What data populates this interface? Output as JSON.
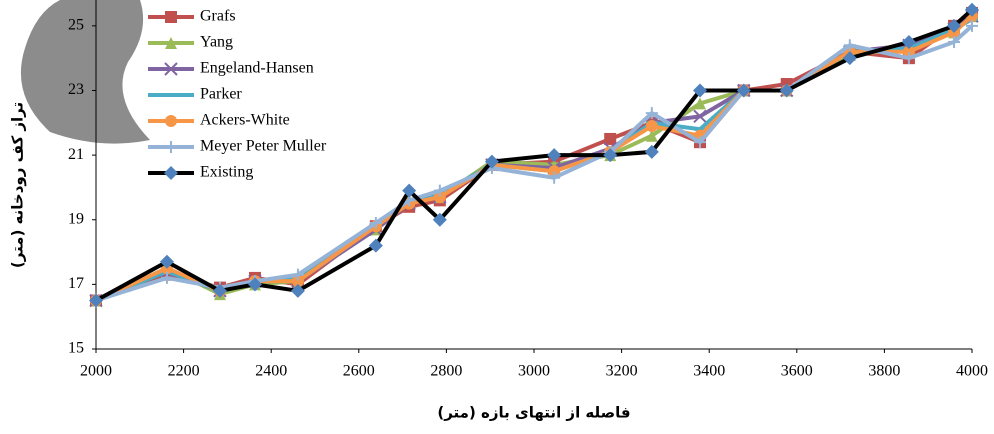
{
  "chart_data": {
    "type": "line",
    "x_label": "فاصله از انتهای بازه (متر)",
    "y_label": "تراز کف رودخانه (متر)",
    "x": [
      2000,
      2162,
      2283,
      2363,
      2461,
      2639,
      2715,
      2785,
      2904,
      3046,
      3174,
      3269,
      3379,
      3479,
      3577,
      3721,
      3856,
      3959,
      4000
    ],
    "xlim": [
      2000,
      4000
    ],
    "xticks": [
      2000,
      2200,
      2400,
      2600,
      2800,
      3000,
      3200,
      3400,
      3600,
      3800,
      4000
    ],
    "ylim": [
      15,
      25.8
    ],
    "yticks": [
      15,
      17,
      19,
      21,
      23,
      25
    ],
    "legend": "top-left",
    "series": [
      {
        "name": "Grafs",
        "color": "#c0504d",
        "marker": "square",
        "values": [
          16.5,
          17.3,
          16.9,
          17.2,
          17.0,
          18.8,
          19.4,
          19.6,
          20.7,
          20.8,
          21.5,
          22.0,
          21.4,
          23.0,
          23.2,
          24.2,
          24.0,
          25.0,
          25.4
        ]
      },
      {
        "name": "Yang",
        "color": "#9bbb59",
        "marker": "triangle",
        "values": [
          16.5,
          17.5,
          16.7,
          17.0,
          17.1,
          18.7,
          19.6,
          19.7,
          20.8,
          20.7,
          21.0,
          21.6,
          22.6,
          23.0,
          23.0,
          24.1,
          24.3,
          24.8,
          25.3
        ]
      },
      {
        "name": "Engeland-Hansen",
        "color": "#8064a2",
        "marker": "x",
        "values": [
          16.5,
          17.4,
          16.8,
          17.1,
          17.1,
          18.7,
          19.5,
          19.7,
          20.7,
          20.6,
          21.2,
          22.0,
          22.2,
          23.0,
          23.0,
          24.2,
          24.4,
          24.9,
          25.3
        ]
      },
      {
        "name": "Parker",
        "color": "#4bacc6",
        "marker": "dash",
        "values": [
          16.5,
          17.4,
          16.8,
          17.1,
          17.2,
          18.8,
          19.6,
          19.8,
          20.7,
          20.5,
          21.1,
          22.0,
          21.8,
          23.0,
          23.0,
          24.2,
          24.3,
          24.9,
          25.2
        ]
      },
      {
        "name": "Ackers-White",
        "color": "#f79646",
        "marker": "circle",
        "values": [
          16.5,
          17.5,
          16.8,
          17.1,
          17.1,
          18.8,
          19.5,
          19.7,
          20.7,
          20.5,
          21.1,
          21.9,
          21.6,
          23.0,
          23.0,
          24.2,
          24.2,
          24.8,
          25.3
        ]
      },
      {
        "name": "Meyer Peter Muller",
        "color": "#95b3d7",
        "marker": "plus",
        "values": [
          16.5,
          17.2,
          16.9,
          17.1,
          17.3,
          18.9,
          19.6,
          19.9,
          20.6,
          20.3,
          21.1,
          22.3,
          21.4,
          23.0,
          23.0,
          24.4,
          24.0,
          24.5,
          25.0
        ]
      },
      {
        "name": "Existing",
        "color": "#000000",
        "marker": "diamond",
        "marker_color": "#4f81bd",
        "values": [
          16.5,
          17.7,
          16.8,
          17.0,
          16.8,
          18.2,
          19.9,
          19.0,
          20.8,
          21.0,
          21.0,
          21.1,
          23.0,
          23.0,
          23.0,
          24.0,
          24.5,
          25.0,
          25.5
        ]
      }
    ]
  }
}
